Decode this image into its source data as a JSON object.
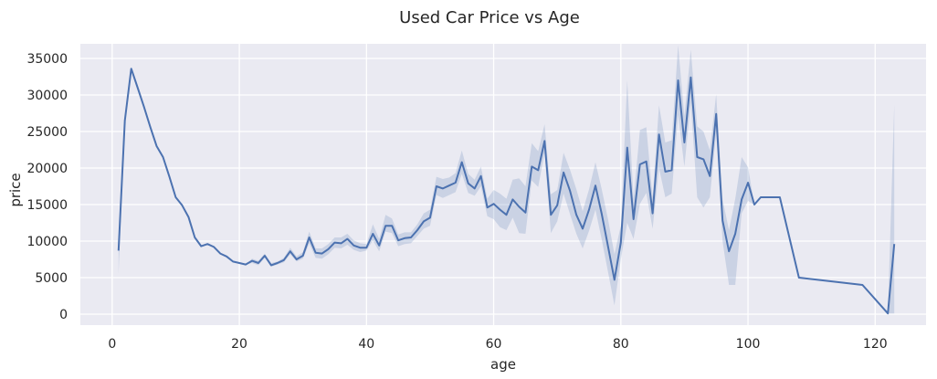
{
  "chart_data": {
    "type": "line",
    "title": "Used Car Price vs Age",
    "xlabel": "age",
    "ylabel": "price",
    "xlim": [
      -5,
      128
    ],
    "ylim": [
      -1500,
      37000
    ],
    "xticks": [
      0,
      20,
      40,
      60,
      80,
      100,
      120
    ],
    "yticks": [
      0,
      5000,
      10000,
      15000,
      20000,
      25000,
      30000,
      35000
    ],
    "grid": true,
    "colors": {
      "line": "#4c72b0",
      "band": "#4c72b0",
      "background": "#eaeaf2",
      "grid": "#ffffff"
    },
    "series": [
      {
        "x": [
          1,
          2,
          3,
          4,
          5,
          6,
          7,
          8,
          9,
          10,
          11,
          12,
          13,
          14,
          15,
          16,
          17,
          18,
          19,
          20,
          21,
          22,
          23,
          24,
          25,
          26,
          27,
          28,
          29,
          30,
          31,
          32,
          33,
          34,
          35,
          36,
          37,
          38,
          39,
          40,
          41,
          42,
          43,
          44,
          45,
          46,
          47,
          48,
          49,
          50,
          51,
          52,
          53,
          54,
          55,
          56,
          57,
          58,
          59,
          60,
          61,
          62,
          63,
          64,
          65,
          66,
          67,
          68,
          69,
          70,
          71,
          72,
          73,
          74,
          75,
          76,
          77,
          78,
          79,
          80,
          81,
          82,
          83,
          84,
          85,
          86,
          87,
          88,
          89,
          90,
          91,
          92,
          93,
          94,
          95,
          96,
          97,
          98,
          99,
          100,
          101,
          102,
          105,
          108,
          118,
          122,
          123
        ],
        "y": [
          8700,
          26500,
          33600,
          31000,
          28400,
          25600,
          23000,
          21500,
          18800,
          16000,
          14900,
          13300,
          10500,
          9300,
          9600,
          9200,
          8300,
          7900,
          7200,
          7000,
          6800,
          7300,
          7000,
          8000,
          6700,
          7000,
          7400,
          8600,
          7500,
          8000,
          10500,
          8400,
          8300,
          8900,
          9800,
          9700,
          10300,
          9400,
          9100,
          9100,
          11000,
          9400,
          12100,
          12100,
          10100,
          10400,
          10500,
          11500,
          12700,
          13200,
          17500,
          17200,
          17600,
          18000,
          20800,
          17900,
          17200,
          18900,
          14600,
          15100,
          14300,
          13600,
          15700,
          14700,
          13900,
          20200,
          19700,
          23700,
          13600,
          14900,
          19400,
          16900,
          13600,
          11700,
          14300,
          17600,
          13700,
          9200,
          4700,
          9800,
          22800,
          13000,
          20500,
          20900,
          13800,
          24600,
          19500,
          19700,
          32000,
          23500,
          32400,
          21500,
          21200,
          18900,
          27400,
          12800,
          8600,
          11000,
          15700,
          18000,
          15000,
          16000,
          16000,
          5000,
          4000,
          100,
          9600
        ],
        "lower": [
          5500,
          26500,
          33600,
          31000,
          28400,
          25600,
          23000,
          21500,
          18800,
          16000,
          14900,
          13300,
          10500,
          9300,
          9600,
          9200,
          8300,
          7900,
          7200,
          7000,
          6800,
          7000,
          6700,
          7700,
          6500,
          6800,
          7100,
          8200,
          7200,
          7600,
          9700,
          7700,
          7600,
          8200,
          9100,
          9000,
          9500,
          8800,
          8500,
          8700,
          10100,
          8600,
          11300,
          11100,
          9300,
          9600,
          9700,
          10700,
          11700,
          12100,
          16300,
          15900,
          16300,
          16700,
          19200,
          16600,
          16200,
          17500,
          13400,
          13000,
          11900,
          11500,
          13200,
          11100,
          11000,
          18300,
          17400,
          22100,
          11100,
          12700,
          16500,
          13700,
          11000,
          9000,
          11400,
          14300,
          10200,
          5700,
          1200,
          7500,
          12500,
          10300,
          15100,
          16600,
          11700,
          20000,
          16000,
          16500,
          27300,
          20200,
          29000,
          16000,
          14600,
          16000,
          24800,
          10000,
          4000,
          4000,
          13800,
          15500,
          15000,
          16000,
          16000,
          5000,
          4000,
          100,
          100
        ],
        "upper": [
          8700,
          26500,
          33600,
          31000,
          28400,
          25600,
          23000,
          21500,
          18800,
          16000,
          14900,
          13300,
          10500,
          9300,
          9600,
          9200,
          8300,
          7900,
          7200,
          7000,
          6800,
          7600,
          7300,
          8300,
          7000,
          7200,
          7700,
          9100,
          7900,
          8500,
          11300,
          9000,
          9000,
          9600,
          10500,
          10500,
          11000,
          10100,
          9700,
          9600,
          12300,
          10300,
          13600,
          13100,
          10900,
          11200,
          11200,
          12300,
          13800,
          14300,
          18800,
          18500,
          18700,
          19300,
          22400,
          19200,
          18400,
          20200,
          15800,
          17000,
          16500,
          15800,
          18400,
          18600,
          17500,
          23400,
          22300,
          26000,
          16400,
          17000,
          22100,
          19800,
          17100,
          14100,
          17100,
          20800,
          17100,
          12900,
          8200,
          12100,
          32000,
          15700,
          25200,
          25600,
          16000,
          28600,
          23500,
          23800,
          36800,
          27100,
          36200,
          25700,
          25000,
          22400,
          30100,
          15700,
          11500,
          15800,
          21500,
          20100,
          15000,
          16000,
          16000,
          5000,
          4000,
          100,
          28700
        ]
      }
    ]
  }
}
